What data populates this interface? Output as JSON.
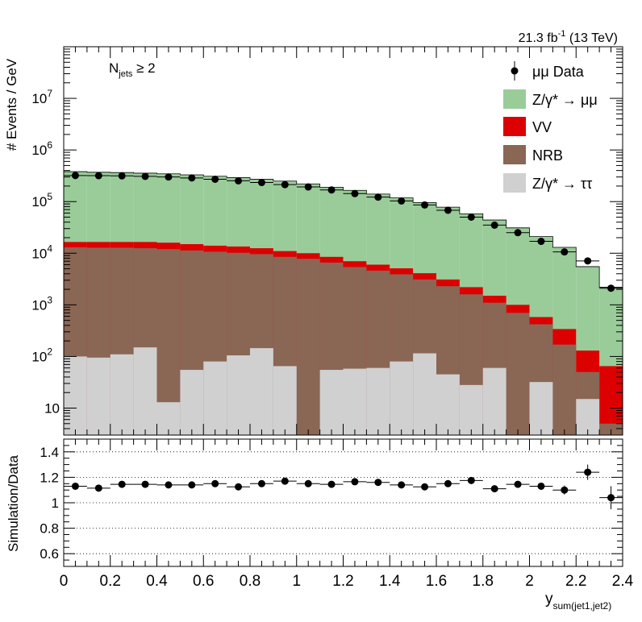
{
  "lumi_label": {
    "value": "21.3 fb",
    "sup": "-1",
    "energy": " (13 TeV)"
  },
  "selection_label": {
    "base": "N",
    "sub": "jets",
    "cut": " ≥ 2"
  },
  "chart_data": [
    {
      "type": "area",
      "subtype": "stacked-histogram",
      "ylabel": "# Events / GeV",
      "yscale": "log",
      "ylim": [
        3,
        100000000
      ],
      "yticks": [
        {
          "value": 10,
          "label": "10",
          "sup": ""
        },
        {
          "value": 100,
          "label": "10",
          "sup": "2"
        },
        {
          "value": 1000,
          "label": "10",
          "sup": "3"
        },
        {
          "value": 10000,
          "label": "10",
          "sup": "4"
        },
        {
          "value": 100000,
          "label": "10",
          "sup": "5"
        },
        {
          "value": 1000000,
          "label": "10",
          "sup": "6"
        },
        {
          "value": 10000000,
          "label": "10",
          "sup": "7"
        }
      ],
      "xlim": [
        0,
        2.4
      ],
      "bin_edges": [
        0,
        0.1,
        0.2,
        0.3,
        0.4,
        0.5,
        0.6,
        0.7,
        0.8,
        0.9,
        1.0,
        1.1,
        1.2,
        1.3,
        1.4,
        1.5,
        1.6,
        1.7,
        1.8,
        1.9,
        2.0,
        2.1,
        2.2,
        2.3,
        2.4
      ],
      "legend": [
        {
          "key": "data",
          "label": "μμ Data",
          "style": "marker"
        },
        {
          "key": "zmm",
          "label": "Z/γ* → μμ",
          "style": "fill"
        },
        {
          "key": "vv",
          "label": "VV",
          "style": "fill"
        },
        {
          "key": "nrb",
          "label": "NRB",
          "style": "fill"
        },
        {
          "key": "ztt",
          "label": "Z/γ* → ττ",
          "style": "fill"
        }
      ],
      "legend_position": "top-right",
      "stack_order_bottom_to_top": [
        "ztt",
        "nrb",
        "vv",
        "zmm"
      ],
      "stacked_cumulative": {
        "ztt": [
          100,
          95,
          110,
          150,
          13,
          55,
          80,
          105,
          145,
          65,
          1,
          55,
          58,
          60,
          80,
          115,
          45,
          28,
          60,
          1,
          32,
          1,
          15,
          1
        ],
        "nrb": [
          13000,
          12800,
          12800,
          12500,
          12000,
          11300,
          10700,
          10200,
          9600,
          8500,
          7800,
          6600,
          5400,
          4600,
          3900,
          3100,
          2300,
          1600,
          1100,
          700,
          420,
          170,
          50,
          5
        ],
        "vv": [
          16500,
          16500,
          16500,
          16500,
          16000,
          15000,
          14000,
          13500,
          12500,
          11000,
          10000,
          8500,
          7000,
          6000,
          5100,
          4100,
          3100,
          2200,
          1500,
          1000,
          580,
          340,
          130,
          65
        ],
        "zmm": [
          380000,
          370000,
          365000,
          355000,
          345000,
          330000,
          310000,
          290000,
          270000,
          250000,
          220000,
          190000,
          165000,
          140000,
          118000,
          96000,
          78000,
          58000,
          44000,
          31000,
          21000,
          13000,
          5500,
          2200
        ]
      },
      "data": {
        "values": [
          320000,
          318000,
          315000,
          308000,
          300000,
          287000,
          271000,
          253000,
          234000,
          213000,
          192000,
          168000,
          143000,
          122000,
          103000,
          86000,
          68000,
          50000,
          35000,
          25000,
          17000,
          10600,
          7100,
          2100
        ]
      },
      "color": {
        "zmm": "#99cc99",
        "vv": "#dd0000",
        "nrb": "#8a6655",
        "ztt": "#d0d0d0",
        "data": "#000000"
      }
    },
    {
      "type": "scatter",
      "subtype": "ratio-panel",
      "ylabel": "Simulation/Data",
      "xlabel": "y",
      "xlabel_sub": "sum(jet1,jet2)",
      "ylim": [
        0.5,
        1.5
      ],
      "yticks": [
        0.6,
        0.8,
        1,
        1.2,
        1.4
      ],
      "ytick_labels": [
        "0.6",
        "0.8",
        "1",
        "1.2",
        "1.4"
      ],
      "xlim": [
        0,
        2.4
      ],
      "xticks": [
        0,
        0.2,
        0.4,
        0.6,
        0.8,
        1,
        1.2,
        1.4,
        1.6,
        1.8,
        2,
        2.2,
        2.4
      ],
      "xtick_labels": [
        "0",
        "0.2",
        "0.4",
        "0.6",
        "0.8",
        "1",
        "1.2",
        "1.4",
        "1.6",
        "1.8",
        "2",
        "2.2",
        "2.4"
      ],
      "grid": "horizontal dotted",
      "x": [
        0.05,
        0.15,
        0.25,
        0.35,
        0.45,
        0.55,
        0.65,
        0.75,
        0.85,
        0.95,
        1.05,
        1.15,
        1.25,
        1.35,
        1.45,
        1.55,
        1.65,
        1.75,
        1.85,
        1.95,
        2.05,
        2.15,
        2.25,
        2.35
      ],
      "y": [
        1.13,
        1.115,
        1.145,
        1.145,
        1.14,
        1.14,
        1.15,
        1.125,
        1.15,
        1.17,
        1.15,
        1.145,
        1.165,
        1.16,
        1.14,
        1.125,
        1.15,
        1.175,
        1.11,
        1.145,
        1.13,
        1.1,
        1.24,
        1.04
      ],
      "yerr": [
        0.008,
        0.008,
        0.008,
        0.008,
        0.008,
        0.008,
        0.008,
        0.008,
        0.008,
        0.008,
        0.008,
        0.008,
        0.008,
        0.008,
        0.01,
        0.01,
        0.012,
        0.014,
        0.018,
        0.02,
        0.028,
        0.035,
        0.06,
        0.09
      ]
    }
  ]
}
